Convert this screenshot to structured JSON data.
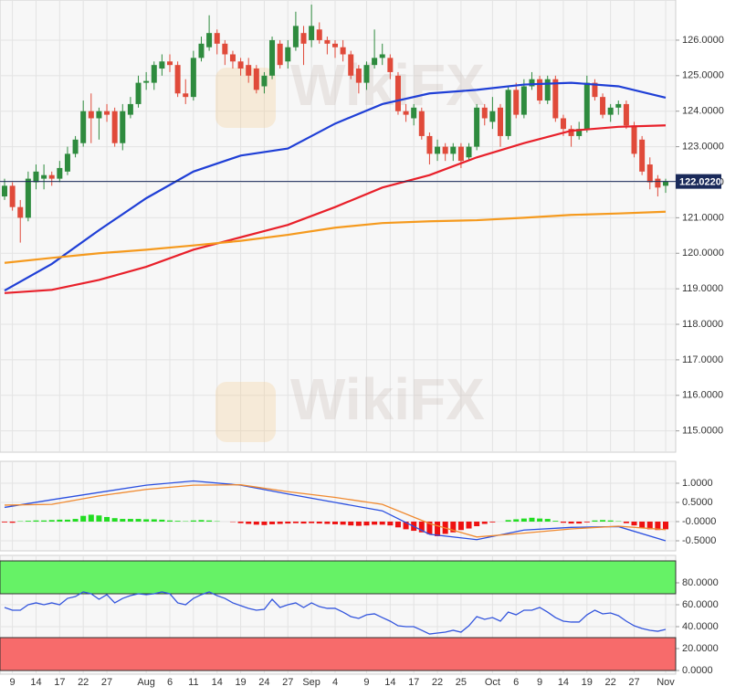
{
  "chart_data": [
    {
      "type": "candlestick",
      "watermark": "WikiFX",
      "categories": [
        null,
        "9",
        null,
        null,
        "14",
        null,
        null,
        "17",
        null,
        null,
        "22",
        null,
        null,
        "27",
        null,
        null,
        null,
        null,
        "Aug",
        null,
        null,
        "6",
        null,
        null,
        "11",
        null,
        null,
        "14",
        null,
        null,
        "19",
        null,
        null,
        "24",
        null,
        null,
        "27",
        null,
        null,
        "Sep",
        null,
        null,
        "4",
        null,
        null,
        null,
        "9",
        null,
        null,
        "14",
        null,
        null,
        "17",
        null,
        null,
        "22",
        null,
        null,
        "25",
        null,
        null,
        null,
        "Oct",
        null,
        null,
        "6",
        null,
        null,
        "9",
        null,
        null,
        "14",
        null,
        null,
        "19",
        null,
        null,
        "22",
        null,
        null,
        "27",
        null,
        null,
        null,
        "Nov"
      ],
      "open": [
        121.6,
        121.9,
        121.3,
        121.0,
        122.0,
        122.1,
        122.2,
        122.1,
        122.3,
        122.8,
        123.1,
        124.0,
        123.8,
        124.0,
        124.0,
        123.1,
        123.9,
        124.2,
        124.8,
        124.8,
        125.2,
        125.4,
        125.3,
        124.5,
        124.4,
        125.5,
        125.8,
        126.2,
        125.9,
        125.6,
        125.4,
        125.3,
        125.2,
        124.7,
        125.0,
        125.9,
        125.4,
        125.8,
        126.2,
        126.0,
        126.3,
        126.0,
        125.9,
        125.8,
        125.6,
        125.2,
        124.8,
        125.3,
        125.5,
        125.5,
        125.0,
        124.0,
        123.8,
        124.0,
        123.3,
        122.8,
        123.0,
        122.8,
        123.0,
        122.7,
        123.0,
        124.1,
        123.7,
        124.1,
        123.3,
        124.6,
        123.9,
        124.7,
        124.9,
        124.3,
        124.9,
        123.8,
        123.5,
        123.3,
        123.5,
        124.8,
        124.4,
        123.9,
        124.1,
        124.2,
        123.6,
        123.2,
        122.5,
        122.1,
        121.9
      ],
      "high": [
        122.1,
        122.0,
        121.5,
        122.3,
        122.5,
        122.5,
        122.3,
        122.6,
        123.0,
        123.3,
        124.3,
        124.5,
        124.1,
        124.2,
        124.1,
        124.2,
        124.4,
        125.0,
        125.1,
        125.4,
        125.6,
        125.6,
        125.4,
        124.9,
        125.7,
        126.1,
        126.7,
        126.3,
        126.0,
        125.7,
        125.5,
        125.5,
        125.3,
        125.1,
        126.1,
        126.0,
        126.0,
        126.8,
        126.4,
        127.0,
        126.5,
        126.1,
        126.0,
        126.0,
        125.7,
        125.3,
        125.4,
        126.3,
        125.9,
        125.6,
        125.1,
        124.2,
        124.2,
        124.1,
        123.4,
        123.2,
        123.1,
        123.1,
        123.1,
        123.1,
        124.2,
        124.2,
        124.4,
        124.2,
        124.7,
        124.8,
        124.9,
        125.1,
        125.0,
        125.0,
        125.0,
        123.9,
        123.6,
        123.7,
        125.0,
        124.9,
        124.5,
        124.2,
        124.3,
        124.3,
        123.7,
        123.3,
        122.7,
        122.2,
        122.1
      ],
      "low": [
        121.5,
        121.2,
        120.3,
        120.9,
        121.8,
        121.8,
        121.9,
        122.0,
        122.2,
        122.7,
        123.0,
        123.1,
        123.2,
        123.7,
        123.0,
        122.9,
        123.8,
        124.1,
        124.6,
        124.6,
        125.0,
        125.1,
        124.4,
        124.2,
        124.3,
        125.4,
        125.7,
        125.6,
        125.3,
        125.2,
        125.0,
        124.8,
        124.5,
        124.5,
        124.9,
        125.2,
        125.2,
        125.7,
        125.3,
        125.8,
        125.9,
        125.6,
        125.5,
        125.4,
        124.9,
        124.5,
        124.6,
        125.2,
        125.3,
        124.9,
        123.9,
        123.7,
        123.6,
        123.2,
        122.5,
        122.6,
        122.6,
        122.6,
        122.4,
        122.6,
        122.9,
        123.6,
        123.5,
        123.0,
        123.2,
        123.8,
        123.8,
        124.6,
        124.2,
        124.2,
        123.7,
        123.3,
        123.0,
        123.2,
        123.4,
        124.3,
        123.8,
        123.7,
        123.9,
        123.5,
        122.7,
        122.2,
        121.8,
        121.6,
        121.7
      ],
      "close": [
        121.9,
        121.3,
        121.0,
        122.1,
        122.3,
        122.2,
        122.1,
        122.4,
        122.8,
        123.2,
        124.0,
        123.8,
        124.0,
        123.9,
        123.1,
        124.0,
        124.2,
        124.8,
        124.85,
        125.3,
        125.4,
        125.3,
        124.5,
        124.4,
        125.5,
        125.9,
        126.2,
        125.9,
        125.6,
        125.4,
        125.2,
        125.0,
        124.6,
        125.0,
        126.0,
        125.3,
        125.8,
        126.4,
        125.9,
        126.4,
        126.0,
        125.9,
        125.8,
        125.6,
        125.0,
        124.8,
        125.3,
        125.5,
        125.6,
        125.1,
        124.0,
        123.9,
        124.1,
        123.3,
        122.8,
        123.0,
        122.8,
        123.0,
        122.6,
        123.0,
        124.1,
        123.8,
        124.0,
        123.3,
        124.6,
        123.9,
        124.7,
        124.9,
        124.3,
        124.9,
        123.8,
        123.5,
        123.3,
        123.5,
        124.8,
        124.4,
        123.9,
        124.1,
        124.2,
        123.6,
        122.8,
        122.3,
        122.0,
        121.85,
        122.022
      ],
      "up_color": "#2e8b3e",
      "down_color": "#e04a3a",
      "series": [
        {
          "color": "#1f3fd6",
          "x": [
            0,
            6,
            12,
            18,
            24,
            30,
            36,
            42,
            48,
            54,
            60,
            66,
            72,
            78,
            84
          ],
          "values": [
            118.95,
            119.7,
            120.65,
            121.55,
            122.3,
            122.75,
            122.95,
            123.65,
            124.2,
            124.5,
            124.6,
            124.75,
            124.8,
            124.7,
            124.38
          ]
        },
        {
          "color": "#e8202a",
          "x": [
            0,
            6,
            12,
            18,
            24,
            30,
            36,
            42,
            48,
            54,
            60,
            66,
            72,
            78,
            84
          ],
          "values": [
            118.88,
            118.97,
            119.25,
            119.62,
            120.1,
            120.45,
            120.8,
            121.3,
            121.85,
            122.2,
            122.7,
            123.1,
            123.45,
            123.56,
            123.6
          ]
        },
        {
          "color": "#f59a1e",
          "x": [
            0,
            6,
            12,
            18,
            24,
            30,
            36,
            42,
            48,
            54,
            60,
            66,
            72,
            78,
            84
          ],
          "values": [
            119.73,
            119.87,
            120.0,
            120.1,
            120.22,
            120.35,
            120.52,
            120.72,
            120.85,
            120.9,
            120.93,
            121.0,
            121.08,
            121.12,
            121.17
          ]
        }
      ],
      "last_price": {
        "value": 122.022,
        "label": "122.0220"
      },
      "last_price_color": "#1a2a5a",
      "ylim": [
        114.4,
        127.13
      ],
      "yticks": [
        {
          "value": 115,
          "label": "115.0000"
        },
        {
          "value": 116,
          "label": "116.0000"
        },
        {
          "value": 117,
          "label": "117.0000"
        },
        {
          "value": 118,
          "label": "118.0000"
        },
        {
          "value": 119,
          "label": "119.0000"
        },
        {
          "value": 120,
          "label": "120.0000"
        },
        {
          "value": 121,
          "label": "121.0000"
        },
        {
          "value": 122,
          "label": "122.0000"
        },
        {
          "value": 123,
          "label": "123.0000"
        },
        {
          "value": 124,
          "label": "124.0000"
        },
        {
          "value": 125,
          "label": "125.0000"
        },
        {
          "value": 126,
          "label": "126.0000"
        }
      ],
      "grid": true
    },
    {
      "type": "macd",
      "histogram": {
        "up_color": "#22dd22",
        "down_color": "#ee1111",
        "values": [
          -0.02,
          -0.03,
          0.01,
          0.02,
          0.03,
          0.03,
          0.04,
          0.05,
          0.05,
          0.07,
          0.15,
          0.18,
          0.16,
          0.12,
          0.09,
          0.07,
          0.07,
          0.07,
          0.06,
          0.06,
          0.05,
          0.03,
          0.02,
          0.01,
          0.03,
          0.04,
          0.03,
          0.01,
          0.0,
          -0.01,
          -0.04,
          -0.06,
          -0.08,
          -0.09,
          -0.07,
          -0.06,
          -0.05,
          -0.04,
          -0.05,
          -0.04,
          -0.05,
          -0.06,
          -0.07,
          -0.08,
          -0.1,
          -0.11,
          -0.1,
          -0.08,
          -0.08,
          -0.1,
          -0.15,
          -0.2,
          -0.24,
          -0.28,
          -0.33,
          -0.38,
          -0.32,
          -0.28,
          -0.22,
          -0.18,
          -0.12,
          -0.06,
          -0.02,
          0.0,
          0.04,
          0.06,
          0.08,
          0.1,
          0.08,
          0.07,
          0.02,
          -0.03,
          -0.05,
          -0.05,
          -0.02,
          0.03,
          0.04,
          0.03,
          0.01,
          -0.04,
          -0.1,
          -0.16,
          -0.2,
          -0.22,
          -0.2
        ]
      },
      "series": [
        {
          "color": "#2a4fe0",
          "x": [
            0,
            6,
            12,
            18,
            24,
            30,
            36,
            42,
            48,
            54,
            60,
            66,
            72,
            78,
            84
          ],
          "values": [
            0.37,
            0.57,
            0.76,
            0.95,
            1.06,
            0.95,
            0.72,
            0.5,
            0.28,
            -0.33,
            -0.47,
            -0.22,
            -0.15,
            -0.13,
            -0.5
          ]
        },
        {
          "color": "#f08a30",
          "x": [
            0,
            6,
            12,
            18,
            24,
            30,
            36,
            42,
            48,
            54,
            60,
            66,
            72,
            78,
            84
          ],
          "values": [
            0.43,
            0.45,
            0.67,
            0.84,
            0.95,
            0.96,
            0.78,
            0.63,
            0.45,
            -0.05,
            -0.4,
            -0.3,
            -0.19,
            -0.12,
            -0.21
          ]
        }
      ],
      "ylim": [
        -0.762,
        1.571
      ],
      "yticks": [
        {
          "value": -0.5,
          "label": "-0.5000"
        },
        {
          "value": 0,
          "label": "-0.0000"
        },
        {
          "value": 0.5,
          "label": "0.5000"
        },
        {
          "value": 1,
          "label": "1.0000"
        }
      ],
      "grid": true
    },
    {
      "type": "rsi",
      "zones": [
        {
          "from": 70,
          "to": 100,
          "color": "#66f266"
        },
        {
          "from": 0,
          "to": 30,
          "color": "#f76b6b"
        }
      ],
      "series": [
        {
          "color": "#3355dd",
          "values": [
            57.5,
            55,
            55,
            60,
            61.7,
            60,
            61.7,
            60,
            65.8,
            67.5,
            71.7,
            70,
            65,
            69.2,
            61.7,
            65.8,
            68.3,
            70,
            69.2,
            70,
            71.7,
            70,
            61.7,
            60,
            65.8,
            69.2,
            71.7,
            68.3,
            65.8,
            61.7,
            59.2,
            56.7,
            55,
            55.8,
            65,
            57.5,
            60,
            61.7,
            57.5,
            61.7,
            58.3,
            56.7,
            56.7,
            53.3,
            49.2,
            47.5,
            50.8,
            51.7,
            48.3,
            45,
            40.8,
            40,
            40,
            36.7,
            33.3,
            34.2,
            35,
            36.7,
            35,
            40.8,
            49.2,
            46.7,
            48.3,
            45,
            53.3,
            50.8,
            55,
            55,
            57.5,
            53.3,
            48.3,
            45,
            44.2,
            44.2,
            50.8,
            55,
            51.7,
            52.5,
            50,
            45,
            40.8,
            38.3,
            36.7,
            35.8,
            37.5
          ]
        }
      ],
      "ylim": [
        -3.33,
        105
      ],
      "yticks": [
        {
          "value": 0,
          "label": "0.0000"
        },
        {
          "value": 20,
          "label": "20.0000"
        },
        {
          "value": 40,
          "label": "40.0000"
        },
        {
          "value": 60,
          "label": "60.0000"
        },
        {
          "value": 80,
          "label": "80.0000"
        }
      ],
      "grid": true
    }
  ]
}
